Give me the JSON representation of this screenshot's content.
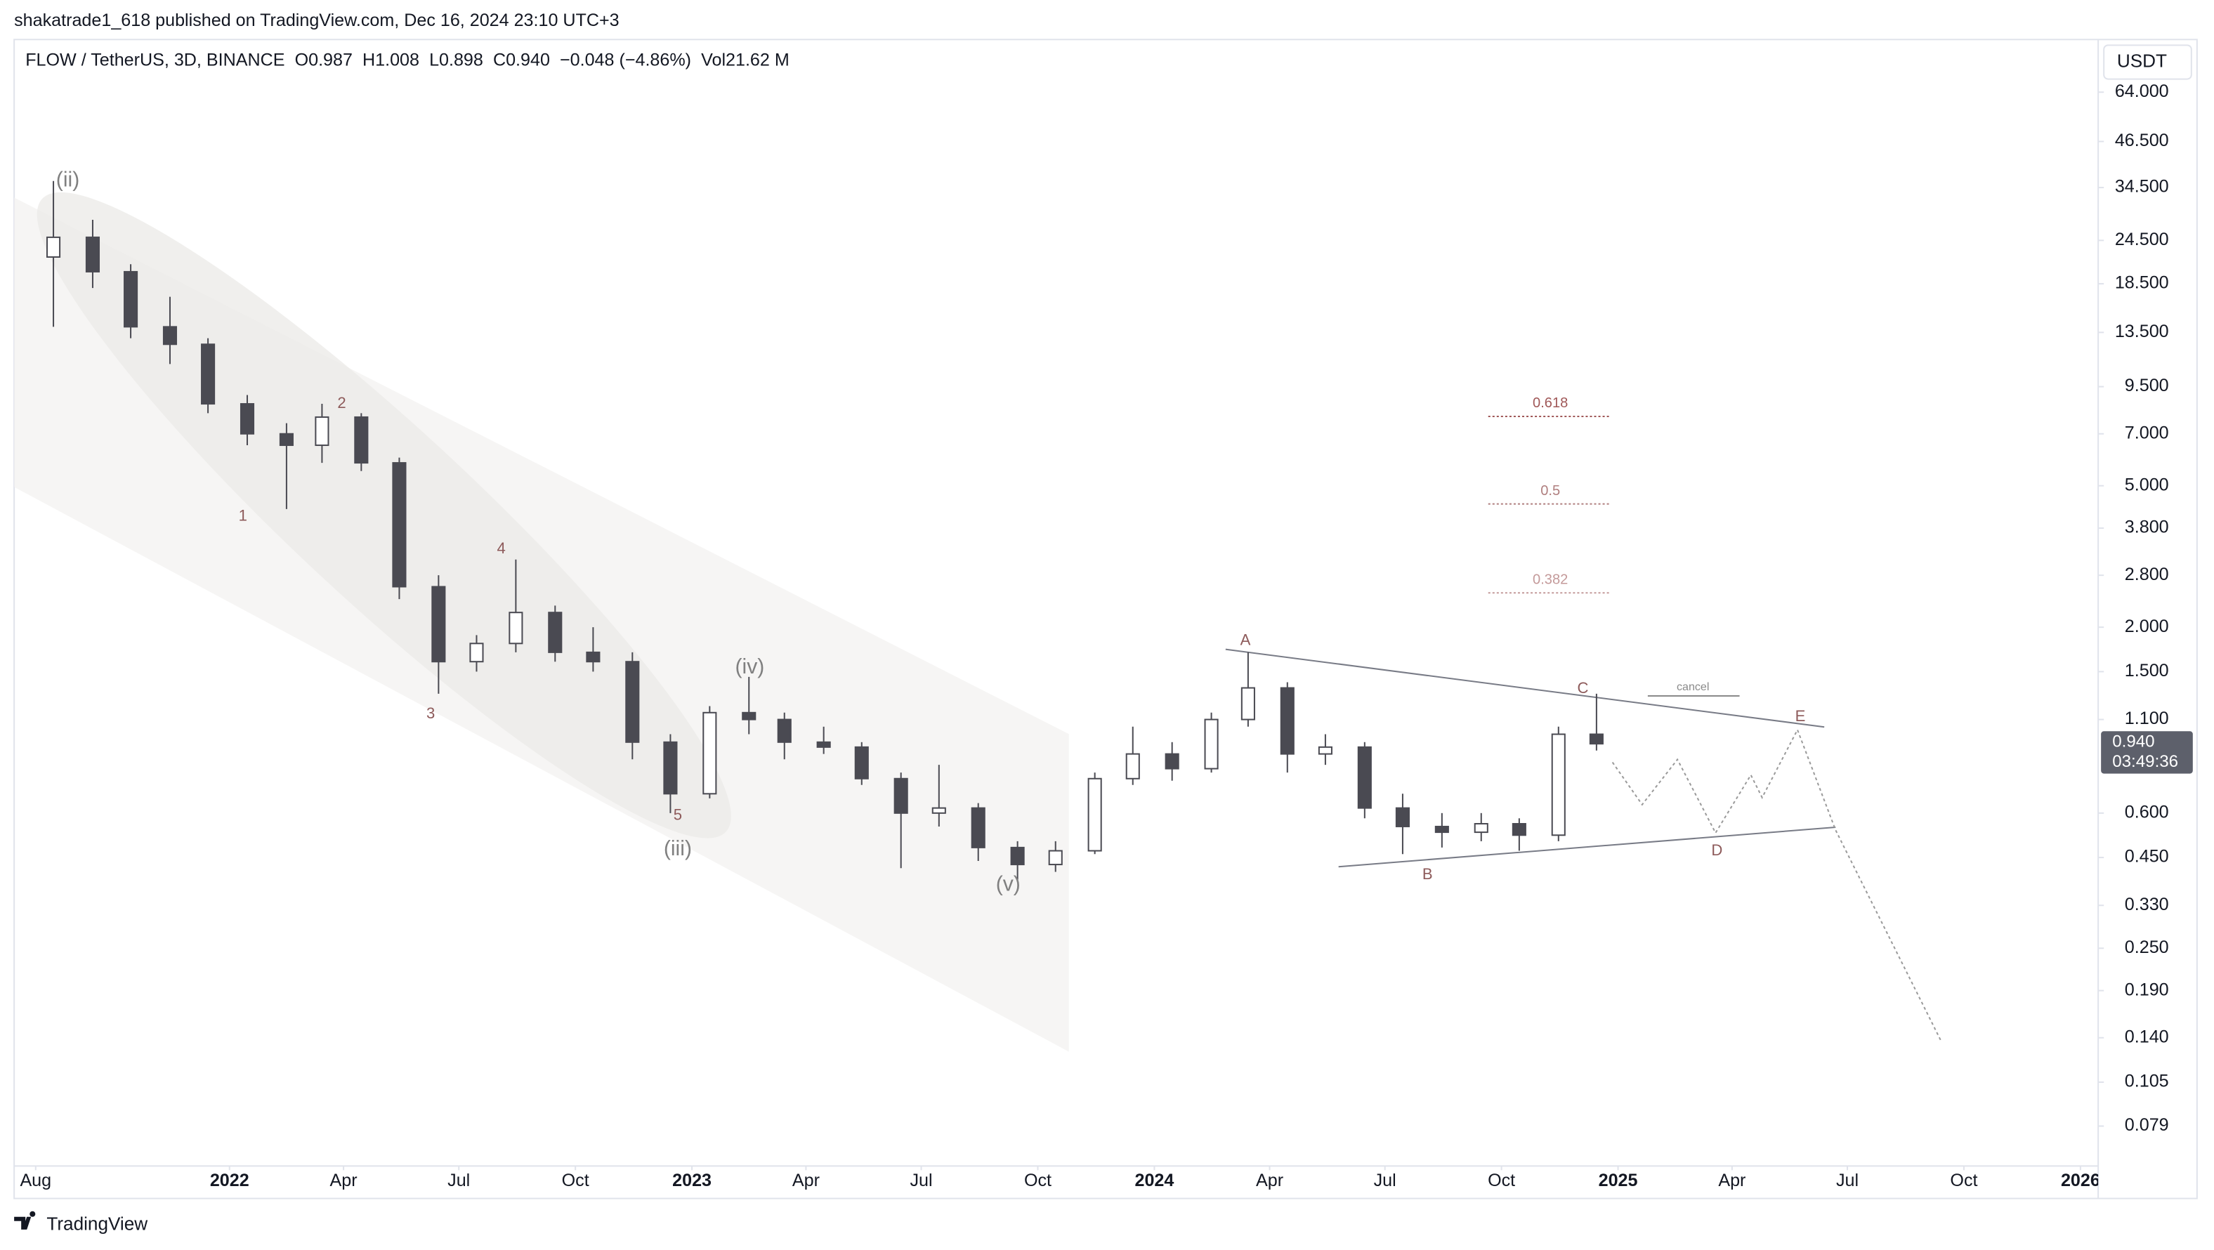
{
  "header": "shakatrade1_618 published on TradingView.com, Dec 16, 2024 23:10 UTC+3",
  "footer": "TradingView",
  "chart_data": {
    "type": "candlestick",
    "title": "FLOW / TetherUS, 3D, BINANCE",
    "ohlc_legend": [
      "O0.987",
      "H1.008",
      "L0.898",
      "C0.940",
      "−0.048 (−4.86%)",
      "Vol21.62 M"
    ],
    "currency": "USDT",
    "last_price_label": "0.940",
    "countdown": "03:49:36",
    "log_scale": true,
    "up_color": "#ffffff",
    "down_color": "#4a4a52",
    "x": [
      "2021-08-15",
      "2021-09-15",
      "2021-10-15",
      "2021-11-15",
      "2021-12-15",
      "2022-01-15",
      "2022-02-15",
      "2022-03-15",
      "2022-04-15",
      "2022-05-15",
      "2022-06-15",
      "2022-07-15",
      "2022-08-15",
      "2022-09-15",
      "2022-10-15",
      "2022-11-15",
      "2022-12-15",
      "2023-01-15",
      "2023-02-15",
      "2023-03-15",
      "2023-04-15",
      "2023-05-15",
      "2023-06-15",
      "2023-07-15",
      "2023-08-15",
      "2023-09-15",
      "2023-10-15",
      "2023-11-15",
      "2023-12-15",
      "2024-01-15",
      "2024-02-15",
      "2024-03-15",
      "2024-04-15",
      "2024-05-15",
      "2024-06-15",
      "2024-07-15",
      "2024-08-15",
      "2024-09-15",
      "2024-10-15",
      "2024-11-15",
      "2024-12-15"
    ],
    "ohlc": [
      [
        22,
        36,
        14,
        25
      ],
      [
        25,
        28,
        18,
        20
      ],
      [
        20,
        21,
        13,
        14
      ],
      [
        14,
        17,
        11,
        12.5
      ],
      [
        12.5,
        13,
        8,
        8.5
      ],
      [
        8.5,
        9,
        6.5,
        7
      ],
      [
        7,
        7.5,
        4.3,
        6.5
      ],
      [
        6.5,
        8.5,
        5.8,
        7.8
      ],
      [
        7.8,
        8,
        5.5,
        5.8
      ],
      [
        5.8,
        6,
        2.4,
        2.6
      ],
      [
        2.6,
        2.8,
        1.3,
        1.6
      ],
      [
        1.6,
        1.9,
        1.5,
        1.8
      ],
      [
        1.8,
        3.1,
        1.7,
        2.2
      ],
      [
        2.2,
        2.3,
        1.6,
        1.7
      ],
      [
        1.7,
        2.0,
        1.5,
        1.6
      ],
      [
        1.6,
        1.7,
        0.85,
        0.95
      ],
      [
        0.95,
        1.0,
        0.6,
        0.68
      ],
      [
        0.68,
        1.2,
        0.66,
        1.15
      ],
      [
        1.15,
        1.45,
        1.0,
        1.1
      ],
      [
        1.1,
        1.15,
        0.85,
        0.95
      ],
      [
        0.95,
        1.05,
        0.88,
        0.92
      ],
      [
        0.92,
        0.95,
        0.72,
        0.75
      ],
      [
        0.75,
        0.78,
        0.42,
        0.6
      ],
      [
        0.6,
        0.82,
        0.55,
        0.62
      ],
      [
        0.62,
        0.64,
        0.44,
        0.48
      ],
      [
        0.48,
        0.5,
        0.39,
        0.43
      ],
      [
        0.43,
        0.5,
        0.41,
        0.47
      ],
      [
        0.47,
        0.78,
        0.46,
        0.75
      ],
      [
        0.75,
        1.05,
        0.72,
        0.88
      ],
      [
        0.88,
        0.95,
        0.74,
        0.8
      ],
      [
        0.8,
        1.15,
        0.78,
        1.1
      ],
      [
        1.1,
        1.7,
        1.05,
        1.35
      ],
      [
        1.35,
        1.4,
        0.78,
        0.88
      ],
      [
        0.88,
        1.0,
        0.82,
        0.92
      ],
      [
        0.92,
        0.95,
        0.58,
        0.62
      ],
      [
        0.62,
        0.68,
        0.46,
        0.55
      ],
      [
        0.55,
        0.6,
        0.48,
        0.53
      ],
      [
        0.53,
        0.6,
        0.5,
        0.56
      ],
      [
        0.56,
        0.58,
        0.47,
        0.52
      ],
      [
        0.52,
        1.05,
        0.5,
        1.0
      ],
      [
        1.0,
        1.3,
        0.9,
        0.94
      ]
    ],
    "xlim": [
      "2021-07-15",
      "2026-01-15"
    ],
    "xticks": [
      {
        "value": "2021-08-01",
        "label": "Aug"
      },
      {
        "value": "2022-01-01",
        "label": "2022"
      },
      {
        "value": "2022-04-01",
        "label": "Apr"
      },
      {
        "value": "2022-07-01",
        "label": "Jul"
      },
      {
        "value": "2022-10-01",
        "label": "Oct"
      },
      {
        "value": "2023-01-01",
        "label": "2023"
      },
      {
        "value": "2023-04-01",
        "label": "Apr"
      },
      {
        "value": "2023-07-01",
        "label": "Jul"
      },
      {
        "value": "2023-10-01",
        "label": "Oct"
      },
      {
        "value": "2024-01-01",
        "label": "2024"
      },
      {
        "value": "2024-04-01",
        "label": "Apr"
      },
      {
        "value": "2024-07-01",
        "label": "Jul"
      },
      {
        "value": "2024-10-01",
        "label": "Oct"
      },
      {
        "value": "2025-01-01",
        "label": "2025"
      },
      {
        "value": "2025-04-01",
        "label": "Apr"
      },
      {
        "value": "2025-07-01",
        "label": "Jul"
      },
      {
        "value": "2025-10-01",
        "label": "Oct"
      },
      {
        "value": "2026-01-01",
        "label": "2026"
      }
    ],
    "ylim": [
      0.061,
      90
    ],
    "yticks": [
      {
        "value": 64,
        "label": "64.000"
      },
      {
        "value": 46.5,
        "label": "46.500"
      },
      {
        "value": 34.5,
        "label": "34.500"
      },
      {
        "value": 24.5,
        "label": "24.500"
      },
      {
        "value": 18.5,
        "label": "18.500"
      },
      {
        "value": 13.5,
        "label": "13.500"
      },
      {
        "value": 9.5,
        "label": "9.500"
      },
      {
        "value": 7,
        "label": "7.000"
      },
      {
        "value": 5,
        "label": "5.000"
      },
      {
        "value": 3.8,
        "label": "3.800"
      },
      {
        "value": 2.8,
        "label": "2.800"
      },
      {
        "value": 2,
        "label": "2.000"
      },
      {
        "value": 1.5,
        "label": "1.500"
      },
      {
        "value": 1.1,
        "label": "1.100"
      },
      {
        "value": 0.6,
        "label": "0.600"
      },
      {
        "value": 0.45,
        "label": "0.450"
      },
      {
        "value": 0.33,
        "label": "0.330"
      },
      {
        "value": 0.25,
        "label": "0.250"
      },
      {
        "value": 0.19,
        "label": "0.190"
      },
      {
        "value": 0.14,
        "label": "0.140"
      },
      {
        "value": 0.105,
        "label": "0.105"
      },
      {
        "value": 0.079,
        "label": "0.079"
      }
    ],
    "annotations": [
      "(ii)",
      "1",
      "2",
      "3",
      "4",
      "5",
      "(iii)",
      "(iv)",
      "(v)",
      "A",
      "B",
      "C",
      "D",
      "E"
    ],
    "fib_labels": [
      "0.618",
      "0.5",
      "0.382"
    ],
    "cancel_label": "cancel"
  }
}
